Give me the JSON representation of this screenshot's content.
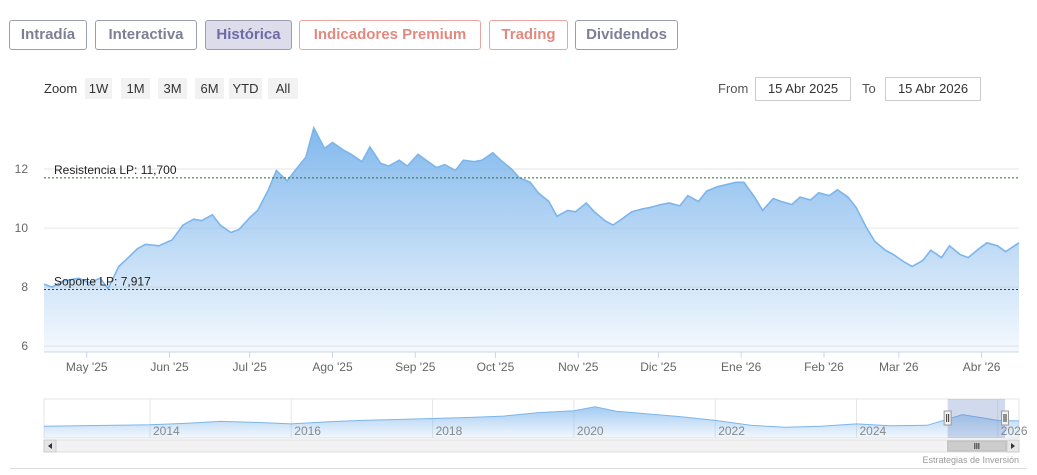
{
  "tabs": [
    {
      "label": "Intradía",
      "state": "normal"
    },
    {
      "label": "Interactiva",
      "state": "normal"
    },
    {
      "label": "Histórica",
      "state": "active"
    },
    {
      "label": "Indicadores Premium",
      "state": "premium"
    },
    {
      "label": "Trading",
      "state": "premium"
    },
    {
      "label": "Dividendos",
      "state": "normal"
    }
  ],
  "zoom": {
    "label": "Zoom",
    "buttons": [
      "1W",
      "1M",
      "3M",
      "6M",
      "YTD",
      "All"
    ]
  },
  "range": {
    "from_label": "From",
    "from_value": "15 Abr 2025",
    "to_label": "To",
    "to_value": "15 Abr 2026"
  },
  "credits": "Estrategias de Inversión",
  "colors": {
    "line": "#7cb5ec",
    "area_top": "#7cb5ec",
    "resistance": "#2f6b2f",
    "support": "#8b1a1a",
    "tab_active_bg": "#dcdcea",
    "premium": "#e3897f"
  },
  "chart_data": {
    "type": "area",
    "x_unit": "date",
    "ylim": [
      5.8,
      13.9
    ],
    "yticks": [
      6,
      8,
      10,
      12
    ],
    "x_range": [
      "2025-04-15",
      "2026-04-15"
    ],
    "xticks": [
      {
        "date": "2025-05-01",
        "label": "May '25"
      },
      {
        "date": "2025-06-01",
        "label": "Jun '25"
      },
      {
        "date": "2025-07-01",
        "label": "Jul '25"
      },
      {
        "date": "2025-08-01",
        "label": "Ago '25"
      },
      {
        "date": "2025-09-01",
        "label": "Sep '25"
      },
      {
        "date": "2025-10-01",
        "label": "Oct '25"
      },
      {
        "date": "2025-11-01",
        "label": "Nov '25"
      },
      {
        "date": "2025-12-01",
        "label": "Dic '25"
      },
      {
        "date": "2026-01-01",
        "label": "Ene '26"
      },
      {
        "date": "2026-02-01",
        "label": "Feb '26"
      },
      {
        "date": "2026-03-01",
        "label": "Mar '26"
      },
      {
        "date": "2026-04-01",
        "label": "Abr '26"
      }
    ],
    "series": [
      {
        "x": [
          "2025-04-15",
          "2025-04-18",
          "2025-04-22",
          "2025-04-28",
          "2025-05-02",
          "2025-05-06",
          "2025-05-09",
          "2025-05-13",
          "2025-05-16",
          "2025-05-20",
          "2025-05-23",
          "2025-05-28",
          "2025-06-02",
          "2025-06-06",
          "2025-06-10",
          "2025-06-13",
          "2025-06-17",
          "2025-06-20",
          "2025-06-24",
          "2025-06-27",
          "2025-07-01",
          "2025-07-04",
          "2025-07-08",
          "2025-07-11",
          "2025-07-15",
          "2025-07-18",
          "2025-07-22",
          "2025-07-25",
          "2025-07-29",
          "2025-08-01",
          "2025-08-05",
          "2025-08-08",
          "2025-08-12",
          "2025-08-15",
          "2025-08-19",
          "2025-08-22",
          "2025-08-26",
          "2025-08-29",
          "2025-09-02",
          "2025-09-05",
          "2025-09-09",
          "2025-09-12",
          "2025-09-16",
          "2025-09-19",
          "2025-09-23",
          "2025-09-26",
          "2025-09-30",
          "2025-10-03",
          "2025-10-07",
          "2025-10-10",
          "2025-10-14",
          "2025-10-17",
          "2025-10-21",
          "2025-10-24",
          "2025-10-28",
          "2025-10-31",
          "2025-11-04",
          "2025-11-07",
          "2025-11-11",
          "2025-11-14",
          "2025-11-18",
          "2025-11-21",
          "2025-11-25",
          "2025-11-28",
          "2025-12-02",
          "2025-12-05",
          "2025-12-09",
          "2025-12-12",
          "2025-12-16",
          "2025-12-19",
          "2025-12-23",
          "2025-12-30",
          "2026-01-02",
          "2026-01-06",
          "2026-01-09",
          "2026-01-13",
          "2026-01-16",
          "2026-01-20",
          "2026-01-23",
          "2026-01-27",
          "2026-01-30",
          "2026-02-03",
          "2026-02-06",
          "2026-02-10",
          "2026-02-13",
          "2026-02-17",
          "2026-02-20",
          "2026-02-24",
          "2026-02-27",
          "2026-03-03",
          "2026-03-06",
          "2026-03-10",
          "2026-03-13",
          "2026-03-17",
          "2026-03-20",
          "2026-03-24",
          "2026-03-27",
          "2026-03-31",
          "2026-04-03",
          "2026-04-07",
          "2026-04-10",
          "2026-04-15"
        ],
        "values": [
          8.1,
          8.0,
          8.2,
          8.3,
          8.15,
          8.3,
          7.95,
          8.7,
          8.95,
          9.3,
          9.45,
          9.4,
          9.6,
          10.1,
          10.3,
          10.25,
          10.45,
          10.1,
          9.85,
          9.95,
          10.35,
          10.6,
          11.3,
          11.95,
          11.6,
          11.95,
          12.4,
          13.4,
          12.7,
          12.9,
          12.65,
          12.5,
          12.25,
          12.75,
          12.2,
          12.1,
          12.3,
          12.1,
          12.5,
          12.3,
          12.05,
          12.15,
          11.95,
          12.3,
          12.25,
          12.3,
          12.55,
          12.3,
          12.0,
          11.7,
          11.55,
          11.2,
          10.9,
          10.4,
          10.6,
          10.55,
          10.85,
          10.55,
          10.25,
          10.1,
          10.35,
          10.55,
          10.65,
          10.7,
          10.8,
          10.85,
          10.75,
          11.1,
          10.9,
          11.25,
          11.4,
          11.55,
          11.55,
          11.05,
          10.6,
          11.0,
          10.9,
          10.8,
          11.05,
          10.95,
          11.2,
          11.1,
          11.3,
          11.05,
          10.7,
          10.0,
          9.55,
          9.25,
          9.1,
          8.85,
          8.7,
          8.9,
          9.25,
          9.0,
          9.4,
          9.1,
          9.0,
          9.3,
          9.5,
          9.4,
          9.2,
          9.5
        ]
      }
    ],
    "hlines": [
      {
        "label": "Resistencia LP: 11,700",
        "value": 11.7
      },
      {
        "label": "Soporte LP: 7,917",
        "value": 7.917
      }
    ],
    "navigator": {
      "x_range": [
        2012.5,
        2026.3
      ],
      "xticks": [
        2014,
        2016,
        2018,
        2020,
        2022,
        2024,
        2026
      ],
      "x": [
        2012.5,
        2013,
        2013.5,
        2014,
        2014.5,
        2015,
        2015.5,
        2016,
        2016.5,
        2017,
        2017.5,
        2018,
        2018.5,
        2019,
        2019.5,
        2020,
        2020.3,
        2020.6,
        2021,
        2021.5,
        2022,
        2022.5,
        2023,
        2023.5,
        2024,
        2024.5,
        2025,
        2025.5,
        2026,
        2026.3
      ],
      "values": [
        8.4,
        8.5,
        8.6,
        8.7,
        9.0,
        9.4,
        9.2,
        8.9,
        9.3,
        9.6,
        9.8,
        10.0,
        10.2,
        10.5,
        11.2,
        11.6,
        12.4,
        11.5,
        11.0,
        10.4,
        9.6,
        8.6,
        8.2,
        8.4,
        8.9,
        8.5,
        8.6,
        10.8,
        9.6,
        9.5
      ],
      "selection": [
        2025.29,
        2026.29
      ]
    }
  }
}
